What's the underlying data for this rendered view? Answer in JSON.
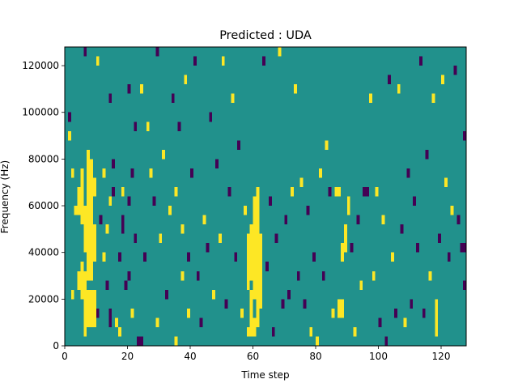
{
  "chart_data": {
    "type": "heatmap",
    "title": "Predicted : UDA",
    "xlabel": "Time step",
    "ylabel": "Frequency (Hz)",
    "xlim": [
      0,
      128
    ],
    "ylim": [
      0,
      128000
    ],
    "xticks": [
      0,
      20,
      40,
      60,
      80,
      100,
      120
    ],
    "yticks": [
      0,
      20000,
      40000,
      60000,
      80000,
      100000,
      120000
    ],
    "value_levels": {
      "low": -1,
      "mid": 0,
      "high": 1
    },
    "colors": {
      "low": "#440154",
      "mid": "#21918c",
      "high": "#fde725"
    },
    "background_value": 0,
    "cell_height": 4000,
    "note": "",
    "cells": [
      {
        "t": 1,
        "f0": 96000,
        "f1": 100000,
        "v": -1
      },
      {
        "t": 1,
        "f0": 88000,
        "f1": 92000,
        "v": 1
      },
      {
        "t": 2,
        "f0": 72000,
        "f1": 76000,
        "v": 1
      },
      {
        "t": 2,
        "f0": 20000,
        "f1": 24000,
        "v": 1
      },
      {
        "t": 3,
        "f0": 56000,
        "f1": 60000,
        "v": 1
      },
      {
        "t": 4,
        "f0": 56000,
        "f1": 68000,
        "v": 1
      },
      {
        "t": 4,
        "f0": 24000,
        "f1": 32000,
        "v": 1
      },
      {
        "t": 5,
        "f0": 52000,
        "f1": 76000,
        "v": 1
      },
      {
        "t": 5,
        "f0": 20000,
        "f1": 36000,
        "v": 1
      },
      {
        "t": 6,
        "f0": 40000,
        "f1": 60000,
        "v": 1
      },
      {
        "t": 6,
        "f0": 4000,
        "f1": 32000,
        "v": 1
      },
      {
        "t": 6,
        "f0": 124000,
        "f1": 128000,
        "v": -1
      },
      {
        "t": 7,
        "f0": 28000,
        "f1": 84000,
        "v": 1
      },
      {
        "t": 7,
        "f0": 8000,
        "f1": 24000,
        "v": 1
      },
      {
        "t": 8,
        "f0": 28000,
        "f1": 80000,
        "v": 1
      },
      {
        "t": 8,
        "f0": 8000,
        "f1": 24000,
        "v": 1
      },
      {
        "t": 9,
        "f0": 8000,
        "f1": 24000,
        "v": 1
      },
      {
        "t": 9,
        "f0": 36000,
        "f1": 52000,
        "v": 1
      },
      {
        "t": 9,
        "f0": 64000,
        "f1": 72000,
        "v": 1
      },
      {
        "t": 10,
        "f0": 120000,
        "f1": 124000,
        "v": 1
      },
      {
        "t": 10,
        "f0": 12000,
        "f1": 16000,
        "v": -1
      },
      {
        "t": 11,
        "f0": 52000,
        "f1": 56000,
        "v": -1
      },
      {
        "t": 12,
        "f0": 72000,
        "f1": 76000,
        "v": 1
      },
      {
        "t": 12,
        "f0": 36000,
        "f1": 40000,
        "v": 1
      },
      {
        "t": 13,
        "f0": 48000,
        "f1": 52000,
        "v": 1
      },
      {
        "t": 13,
        "f0": 24000,
        "f1": 28000,
        "v": -1
      },
      {
        "t": 14,
        "f0": 104000,
        "f1": 108000,
        "v": -1
      },
      {
        "t": 14,
        "f0": 60000,
        "f1": 64000,
        "v": 1
      },
      {
        "t": 14,
        "f0": 8000,
        "f1": 16000,
        "v": -1
      },
      {
        "t": 15,
        "f0": 76000,
        "f1": 80000,
        "v": -1
      },
      {
        "t": 15,
        "f0": 64000,
        "f1": 68000,
        "v": -1
      },
      {
        "t": 16,
        "f0": 8000,
        "f1": 12000,
        "v": 1
      },
      {
        "t": 17,
        "f0": 36000,
        "f1": 40000,
        "v": -1
      },
      {
        "t": 17,
        "f0": 4000,
        "f1": 8000,
        "v": 1
      },
      {
        "t": 18,
        "f0": 64000,
        "f1": 68000,
        "v": 1
      },
      {
        "t": 18,
        "f0": 48000,
        "f1": 56000,
        "v": -1
      },
      {
        "t": 19,
        "f0": 24000,
        "f1": 28000,
        "v": -1
      },
      {
        "t": 20,
        "f0": 108000,
        "f1": 112000,
        "v": -1
      },
      {
        "t": 20,
        "f0": 60000,
        "f1": 64000,
        "v": -1
      },
      {
        "t": 20,
        "f0": 28000,
        "f1": 32000,
        "v": -1
      },
      {
        "t": 21,
        "f0": 72000,
        "f1": 76000,
        "v": -1
      },
      {
        "t": 21,
        "f0": 12000,
        "f1": 16000,
        "v": 1
      },
      {
        "t": 22,
        "f0": 92000,
        "f1": 96000,
        "v": -1
      },
      {
        "t": 22,
        "f0": 44000,
        "f1": 48000,
        "v": -1
      },
      {
        "t": 23,
        "f0": 0,
        "f1": 4000,
        "v": -1
      },
      {
        "t": 24,
        "f0": 108000,
        "f1": 112000,
        "v": 1
      },
      {
        "t": 24,
        "f0": 0,
        "f1": 4000,
        "v": -1
      },
      {
        "t": 25,
        "f0": 36000,
        "f1": 40000,
        "v": -1
      },
      {
        "t": 26,
        "f0": 92000,
        "f1": 96000,
        "v": 1
      },
      {
        "t": 27,
        "f0": 72000,
        "f1": 76000,
        "v": 1
      },
      {
        "t": 28,
        "f0": 60000,
        "f1": 64000,
        "v": -1
      },
      {
        "t": 29,
        "f0": 124000,
        "f1": 128000,
        "v": -1
      },
      {
        "t": 29,
        "f0": 8000,
        "f1": 12000,
        "v": 1
      },
      {
        "t": 30,
        "f0": 44000,
        "f1": 48000,
        "v": 1
      },
      {
        "t": 31,
        "f0": 80000,
        "f1": 84000,
        "v": 1
      },
      {
        "t": 32,
        "f0": 20000,
        "f1": 24000,
        "v": -1
      },
      {
        "t": 33,
        "f0": 56000,
        "f1": 60000,
        "v": 1
      },
      {
        "t": 34,
        "f0": 104000,
        "f1": 108000,
        "v": -1
      },
      {
        "t": 35,
        "f0": 64000,
        "f1": 68000,
        "v": 1
      },
      {
        "t": 35,
        "f0": 0,
        "f1": 4000,
        "v": 1
      },
      {
        "t": 36,
        "f0": 92000,
        "f1": 96000,
        "v": -1
      },
      {
        "t": 37,
        "f0": 48000,
        "f1": 52000,
        "v": 1
      },
      {
        "t": 37,
        "f0": 28000,
        "f1": 32000,
        "v": 1
      },
      {
        "t": 38,
        "f0": 112000,
        "f1": 116000,
        "v": 1
      },
      {
        "t": 39,
        "f0": 36000,
        "f1": 40000,
        "v": -1
      },
      {
        "t": 39,
        "f0": 12000,
        "f1": 16000,
        "v": 1
      },
      {
        "t": 40,
        "f0": 72000,
        "f1": 76000,
        "v": -1
      },
      {
        "t": 41,
        "f0": 120000,
        "f1": 124000,
        "v": -1
      },
      {
        "t": 42,
        "f0": 28000,
        "f1": 32000,
        "v": -1
      },
      {
        "t": 43,
        "f0": 8000,
        "f1": 12000,
        "v": -1
      },
      {
        "t": 44,
        "f0": 52000,
        "f1": 56000,
        "v": 1
      },
      {
        "t": 45,
        "f0": 40000,
        "f1": 44000,
        "v": -1
      },
      {
        "t": 46,
        "f0": 96000,
        "f1": 100000,
        "v": -1
      },
      {
        "t": 47,
        "f0": 20000,
        "f1": 24000,
        "v": 1
      },
      {
        "t": 48,
        "f0": 76000,
        "f1": 80000,
        "v": -1
      },
      {
        "t": 49,
        "f0": 44000,
        "f1": 48000,
        "v": 1
      },
      {
        "t": 50,
        "f0": 120000,
        "f1": 124000,
        "v": 1
      },
      {
        "t": 51,
        "f0": 16000,
        "f1": 20000,
        "v": -1
      },
      {
        "t": 52,
        "f0": 64000,
        "f1": 68000,
        "v": -1
      },
      {
        "t": 53,
        "f0": 104000,
        "f1": 108000,
        "v": 1
      },
      {
        "t": 54,
        "f0": 36000,
        "f1": 40000,
        "v": -1
      },
      {
        "t": 55,
        "f0": 84000,
        "f1": 88000,
        "v": -1
      },
      {
        "t": 56,
        "f0": 12000,
        "f1": 16000,
        "v": 1
      },
      {
        "t": 57,
        "f0": 56000,
        "f1": 60000,
        "v": 1
      },
      {
        "t": 58,
        "f0": 24000,
        "f1": 48000,
        "v": 1
      },
      {
        "t": 58,
        "f0": 4000,
        "f1": 8000,
        "v": 1
      },
      {
        "t": 59,
        "f0": 28000,
        "f1": 52000,
        "v": 1
      },
      {
        "t": 59,
        "f0": 4000,
        "f1": 24000,
        "v": 1
      },
      {
        "t": 60,
        "f0": 20000,
        "f1": 64000,
        "v": 1
      },
      {
        "t": 60,
        "f0": 4000,
        "f1": 12000,
        "v": 1
      },
      {
        "t": 61,
        "f0": 8000,
        "f1": 68000,
        "v": 1
      },
      {
        "t": 62,
        "f0": 16000,
        "f1": 48000,
        "v": 1
      },
      {
        "t": 63,
        "f0": 120000,
        "f1": 124000,
        "v": -1
      },
      {
        "t": 64,
        "f0": 32000,
        "f1": 36000,
        "v": -1
      },
      {
        "t": 65,
        "f0": 60000,
        "f1": 64000,
        "v": -1
      },
      {
        "t": 66,
        "f0": 4000,
        "f1": 8000,
        "v": -1
      },
      {
        "t": 67,
        "f0": 44000,
        "f1": 48000,
        "v": -1
      },
      {
        "t": 68,
        "f0": 124000,
        "f1": 128000,
        "v": 1
      },
      {
        "t": 69,
        "f0": 16000,
        "f1": 20000,
        "v": -1
      },
      {
        "t": 70,
        "f0": 52000,
        "f1": 56000,
        "v": -1
      },
      {
        "t": 71,
        "f0": 20000,
        "f1": 24000,
        "v": -1
      },
      {
        "t": 72,
        "f0": 64000,
        "f1": 68000,
        "v": 1
      },
      {
        "t": 73,
        "f0": 108000,
        "f1": 112000,
        "v": 1
      },
      {
        "t": 74,
        "f0": 28000,
        "f1": 32000,
        "v": -1
      },
      {
        "t": 75,
        "f0": 68000,
        "f1": 72000,
        "v": 1
      },
      {
        "t": 76,
        "f0": 16000,
        "f1": 20000,
        "v": -1
      },
      {
        "t": 77,
        "f0": 56000,
        "f1": 60000,
        "v": -1
      },
      {
        "t": 78,
        "f0": 4000,
        "f1": 8000,
        "v": 1
      },
      {
        "t": 79,
        "f0": 36000,
        "f1": 40000,
        "v": -1
      },
      {
        "t": 80,
        "f0": 0,
        "f1": 4000,
        "v": 1
      },
      {
        "t": 81,
        "f0": 72000,
        "f1": 76000,
        "v": 1
      },
      {
        "t": 82,
        "f0": 28000,
        "f1": 32000,
        "v": -1
      },
      {
        "t": 83,
        "f0": 84000,
        "f1": 88000,
        "v": 1
      },
      {
        "t": 84,
        "f0": 64000,
        "f1": 68000,
        "v": -1
      },
      {
        "t": 85,
        "f0": 12000,
        "f1": 16000,
        "v": 1
      },
      {
        "t": 86,
        "f0": 64000,
        "f1": 68000,
        "v": 1
      },
      {
        "t": 87,
        "f0": 12000,
        "f1": 20000,
        "v": 1
      },
      {
        "t": 87,
        "f0": 64000,
        "f1": 68000,
        "v": 1
      },
      {
        "t": 88,
        "f0": 12000,
        "f1": 20000,
        "v": 1
      },
      {
        "t": 88,
        "f0": 36000,
        "f1": 44000,
        "v": 1
      },
      {
        "t": 89,
        "f0": 40000,
        "f1": 52000,
        "v": 1
      },
      {
        "t": 90,
        "f0": 56000,
        "f1": 64000,
        "v": 1
      },
      {
        "t": 91,
        "f0": 40000,
        "f1": 44000,
        "v": -1
      },
      {
        "t": 92,
        "f0": 4000,
        "f1": 8000,
        "v": 1
      },
      {
        "t": 93,
        "f0": 52000,
        "f1": 56000,
        "v": -1
      },
      {
        "t": 94,
        "f0": 24000,
        "f1": 28000,
        "v": 1
      },
      {
        "t": 95,
        "f0": 64000,
        "f1": 68000,
        "v": -1
      },
      {
        "t": 96,
        "f0": 64000,
        "f1": 68000,
        "v": -1
      },
      {
        "t": 97,
        "f0": 104000,
        "f1": 108000,
        "v": 1
      },
      {
        "t": 98,
        "f0": 28000,
        "f1": 32000,
        "v": 1
      },
      {
        "t": 99,
        "f0": 64000,
        "f1": 68000,
        "v": 1
      },
      {
        "t": 100,
        "f0": 8000,
        "f1": 12000,
        "v": -1
      },
      {
        "t": 101,
        "f0": 52000,
        "f1": 56000,
        "v": 1
      },
      {
        "t": 102,
        "f0": 0,
        "f1": 4000,
        "v": -1
      },
      {
        "t": 103,
        "f0": 112000,
        "f1": 116000,
        "v": -1
      },
      {
        "t": 104,
        "f0": 36000,
        "f1": 40000,
        "v": 1
      },
      {
        "t": 105,
        "f0": 12000,
        "f1": 16000,
        "v": -1
      },
      {
        "t": 106,
        "f0": 108000,
        "f1": 112000,
        "v": 1
      },
      {
        "t": 107,
        "f0": 48000,
        "f1": 52000,
        "v": -1
      },
      {
        "t": 108,
        "f0": 8000,
        "f1": 12000,
        "v": 1
      },
      {
        "t": 109,
        "f0": 72000,
        "f1": 76000,
        "v": -1
      },
      {
        "t": 110,
        "f0": 16000,
        "f1": 20000,
        "v": -1
      },
      {
        "t": 111,
        "f0": 60000,
        "f1": 64000,
        "v": -1
      },
      {
        "t": 112,
        "f0": 40000,
        "f1": 44000,
        "v": -1
      },
      {
        "t": 113,
        "f0": 120000,
        "f1": 124000,
        "v": -1
      },
      {
        "t": 114,
        "f0": 12000,
        "f1": 16000,
        "v": -1
      },
      {
        "t": 115,
        "f0": 80000,
        "f1": 84000,
        "v": -1
      },
      {
        "t": 116,
        "f0": 28000,
        "f1": 32000,
        "v": 1
      },
      {
        "t": 117,
        "f0": 104000,
        "f1": 108000,
        "v": 1
      },
      {
        "t": 118,
        "f0": 4000,
        "f1": 20000,
        "v": 1
      },
      {
        "t": 119,
        "f0": 44000,
        "f1": 48000,
        "v": -1
      },
      {
        "t": 120,
        "f0": 112000,
        "f1": 116000,
        "v": 1
      },
      {
        "t": 121,
        "f0": 68000,
        "f1": 72000,
        "v": 1
      },
      {
        "t": 122,
        "f0": 36000,
        "f1": 40000,
        "v": -1
      },
      {
        "t": 123,
        "f0": 56000,
        "f1": 60000,
        "v": 1
      },
      {
        "t": 124,
        "f0": 116000,
        "f1": 120000,
        "v": -1
      },
      {
        "t": 125,
        "f0": 52000,
        "f1": 56000,
        "v": -1
      },
      {
        "t": 126,
        "f0": 40000,
        "f1": 44000,
        "v": -1
      },
      {
        "t": 127,
        "f0": 40000,
        "f1": 44000,
        "v": -1
      },
      {
        "t": 127,
        "f0": 88000,
        "f1": 92000,
        "v": -1
      },
      {
        "t": 127,
        "f0": 24000,
        "f1": 28000,
        "v": -1
      }
    ]
  }
}
